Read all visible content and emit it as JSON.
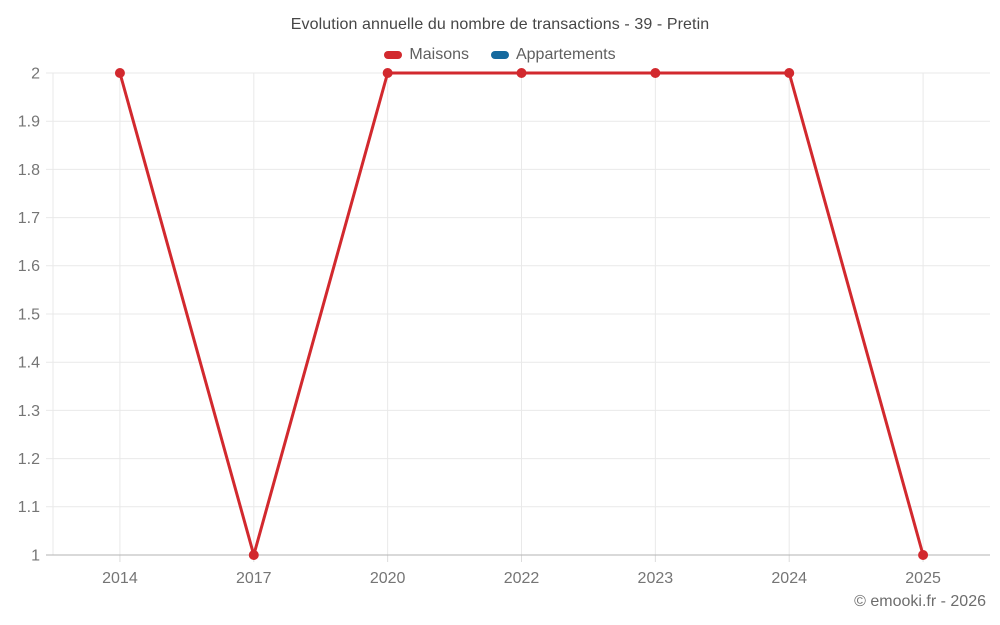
{
  "chart_data": {
    "type": "line",
    "title": "Evolution annuelle du nombre de transactions - 39 - Pretin",
    "categories": [
      "2014",
      "2017",
      "2020",
      "2022",
      "2023",
      "2024",
      "2025"
    ],
    "series": [
      {
        "name": "Maisons",
        "color": "#d2292e",
        "values": [
          2,
          1,
          2,
          2,
          2,
          2,
          1
        ]
      },
      {
        "name": "Appartements",
        "color": "#15699e",
        "values": [
          null,
          null,
          null,
          null,
          null,
          null,
          null
        ]
      }
    ],
    "ylim": [
      1,
      2
    ],
    "yticks": [
      1,
      1.1,
      1.2,
      1.3,
      1.4,
      1.5,
      1.6,
      1.7,
      1.8,
      1.9,
      2
    ],
    "ytick_labels": [
      "1",
      "1.1",
      "1.2",
      "1.3",
      "1.4",
      "1.5",
      "1.6",
      "1.7",
      "1.8",
      "1.9",
      "2"
    ],
    "grid": true,
    "legend_position": "top",
    "xlabel": "",
    "ylabel": ""
  },
  "footer": {
    "copyright": "© emooki.fr - 2026"
  }
}
